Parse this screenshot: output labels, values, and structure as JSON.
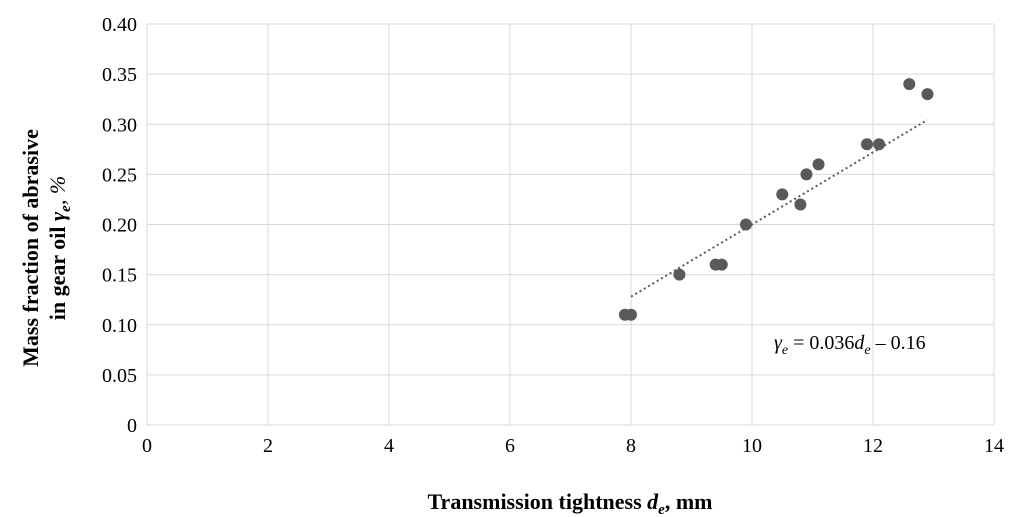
{
  "chart_data": {
    "type": "scatter",
    "title": "",
    "xlabel": {
      "main": "Transmission tightness ",
      "var": "d",
      "sub": "e",
      "unit": ", mm"
    },
    "ylabel": {
      "line1": "Mass fraction of abrasive",
      "line2_pre": "in gear oil ",
      "var": "γ",
      "sub": "e",
      "unit": ", %"
    },
    "xlim": [
      0,
      14
    ],
    "ylim": [
      0,
      0.4
    ],
    "xticks": [
      0,
      2,
      4,
      6,
      8,
      10,
      12,
      14
    ],
    "yticks": [
      "0",
      "0.05",
      "0.10",
      "0.15",
      "0.20",
      "0.25",
      "0.30",
      "0.35",
      "0.40"
    ],
    "grid": true,
    "series": [
      {
        "points": [
          [
            7.9,
            0.11
          ],
          [
            8.0,
            0.11
          ],
          [
            8.8,
            0.15
          ],
          [
            9.4,
            0.16
          ],
          [
            9.5,
            0.16
          ],
          [
            9.9,
            0.2
          ],
          [
            10.5,
            0.23
          ],
          [
            10.8,
            0.22
          ],
          [
            10.9,
            0.25
          ],
          [
            11.1,
            0.26
          ],
          [
            11.9,
            0.28
          ],
          [
            12.1,
            0.28
          ],
          [
            12.6,
            0.34
          ],
          [
            12.9,
            0.33
          ]
        ],
        "color": "#595959"
      }
    ],
    "trendline": {
      "style": "dotted",
      "color": "#595959",
      "x": [
        8.0,
        12.9
      ]
    },
    "annotation": {
      "text": "γe = 0.036de – 0.16",
      "slope": 0.036,
      "intercept": -0.16
    }
  }
}
